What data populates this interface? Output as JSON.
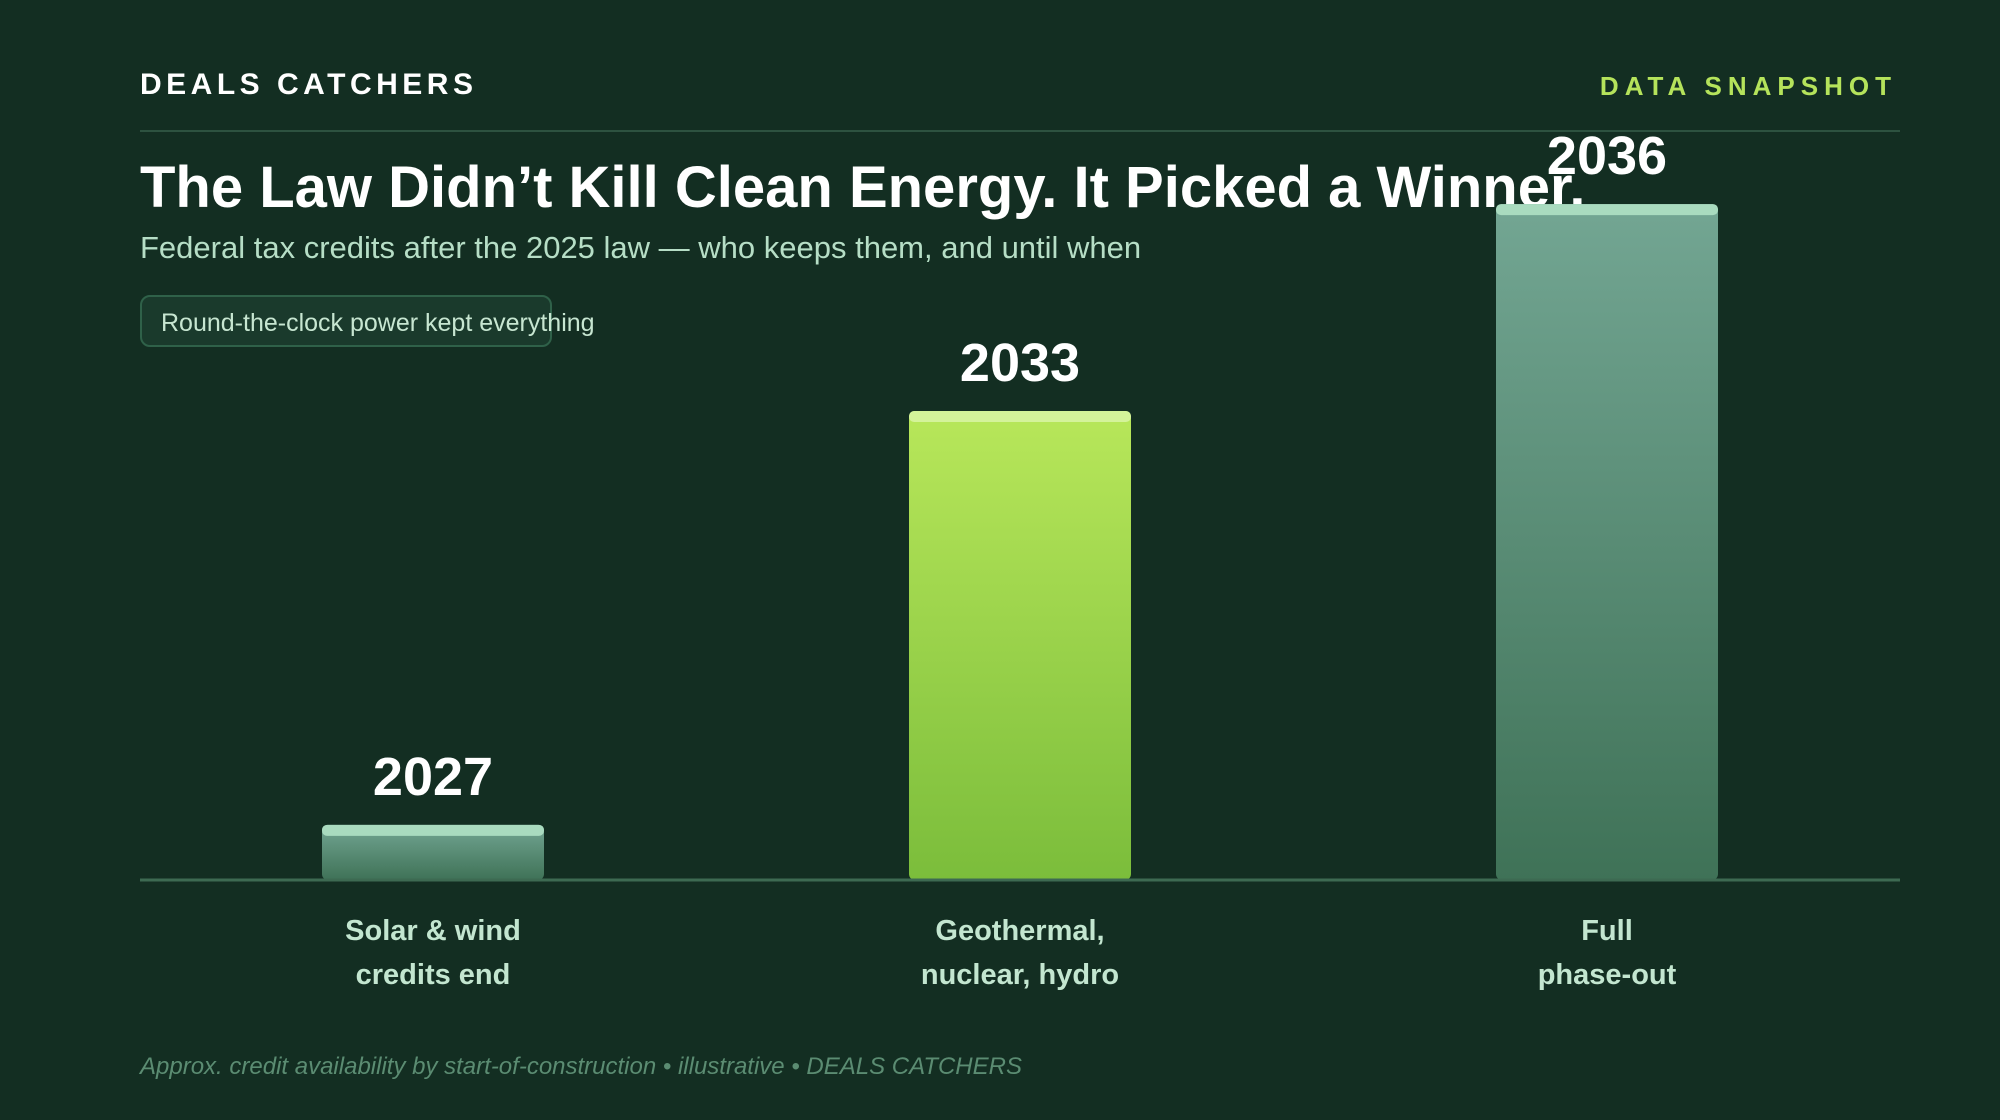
{
  "header": {
    "brand": "DEALS CATCHERS",
    "tag": "DATA SNAPSHOT"
  },
  "title": "The Law Didn’t Kill Clean Energy. It Picked a Winner.",
  "subtitle": "Federal tax credits after the 2025 law — who keeps them, and until when",
  "callout": "Round-the-clock power kept everything",
  "footer": "Approx. credit availability by start-of-construction • illustrative • DEALS CATCHERS",
  "colors": {
    "background": "#132e22",
    "accent": "#b5e35b",
    "bar_green_top": "#b5e35b",
    "bar_green_bottom": "#7cbd3b",
    "bar_teal_top": "#73a693",
    "bar_teal_bottom": "#3d7055"
  },
  "chart_data": {
    "type": "bar",
    "title": "The Law Didn’t Kill Clean Energy. It Picked a Winner.",
    "subtitle": "Federal tax credits after the 2025 law — who keeps them, and until when",
    "categories": [
      [
        "Solar & wind",
        "credits end"
      ],
      [
        "Geothermal,",
        "nuclear, hydro"
      ],
      [
        "Full",
        "phase-out"
      ]
    ],
    "values": [
      2027,
      2033,
      2036
    ],
    "value_labels": [
      "2027",
      "2033",
      "2036"
    ],
    "highlight_index": 1,
    "ylim": [
      2026,
      2037
    ],
    "grid": false,
    "legend": "none",
    "xlabel": "",
    "ylabel": ""
  }
}
